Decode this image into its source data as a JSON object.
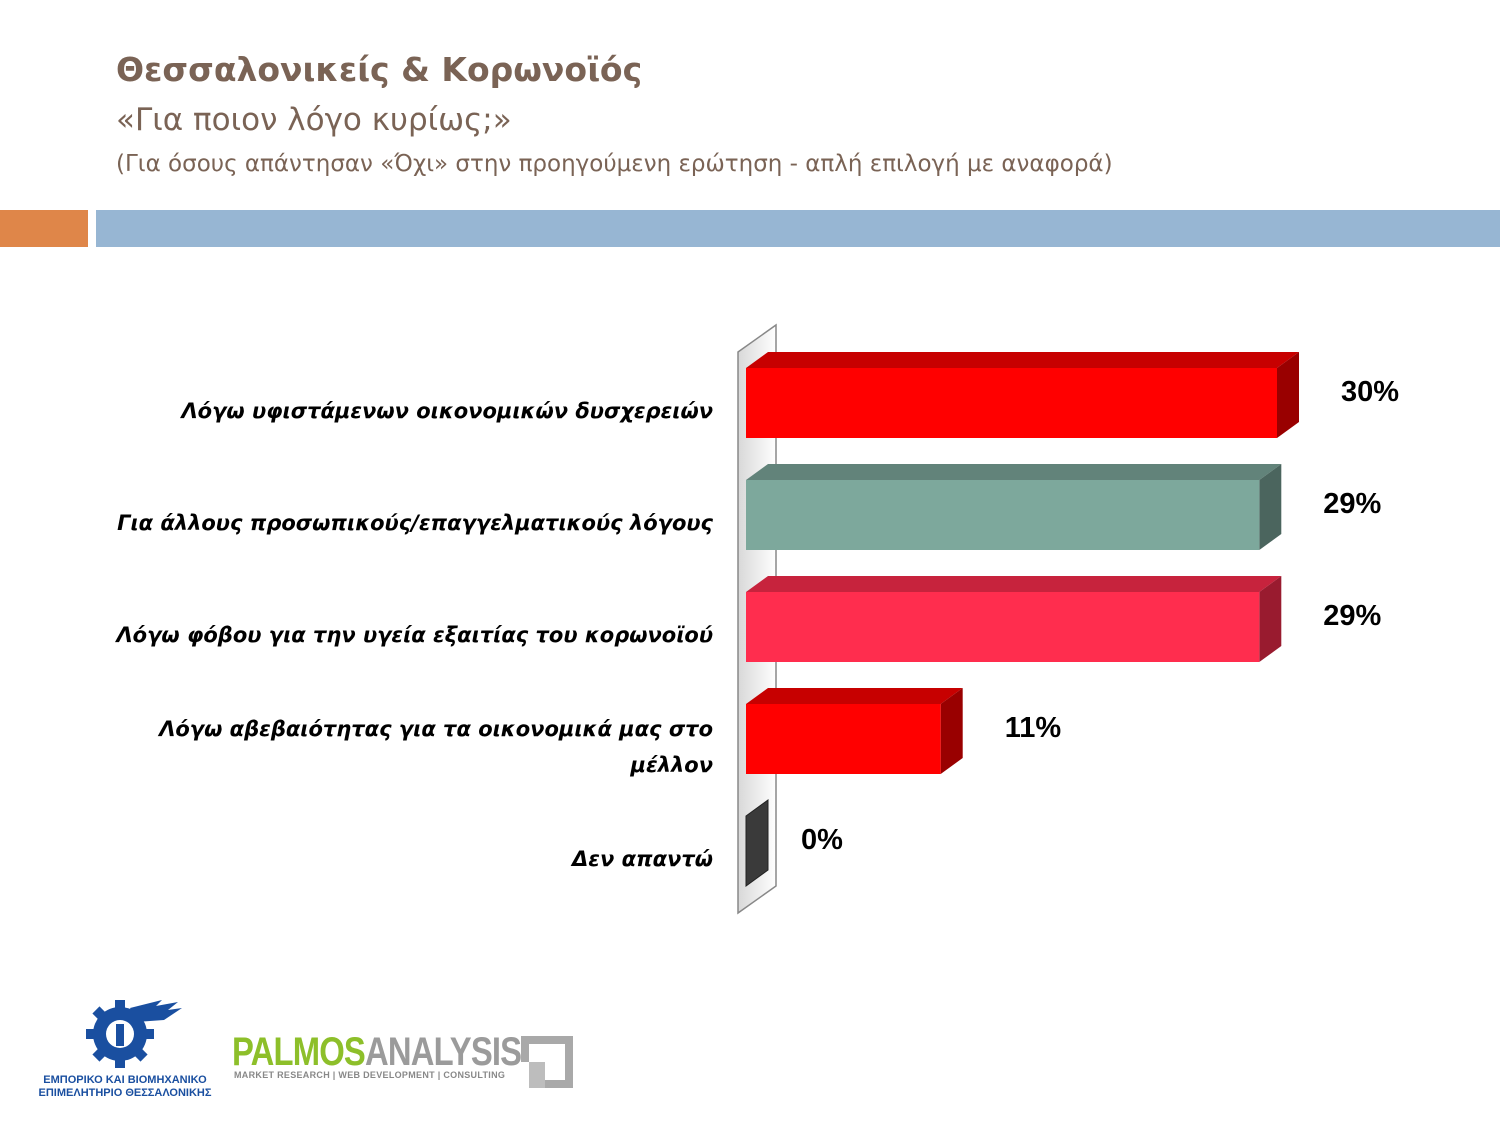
{
  "header": {
    "title": "Θεσσαλονικείς & Κορωνοϊός",
    "subtitle": "«Για ποιον λόγο κυρίως;»",
    "note": "(Για όσους απάντησαν «Όχι» στην προηγούμενη ερώτηση -  απλή επιλογή με αναφορά)"
  },
  "chart_data": {
    "type": "bar",
    "orientation": "horizontal",
    "categories": [
      "Λόγω υφιστάμενων οικονομικών δυσχερειών",
      "Για άλλους προσωπικούς/επαγγελματικούς λόγους",
      "Λόγω φόβου για την υγεία εξαιτίας του κορωνοϊού",
      "Λόγω αβεβαιότητας για τα οικονομικά μας στο μέλλον",
      "Δεν απαντώ"
    ],
    "values": [
      30,
      29,
      29,
      11,
      0
    ],
    "value_labels": [
      "30%",
      "29%",
      "29%",
      "11%",
      "0%"
    ],
    "colors": [
      "#ff0000",
      "#7da89c",
      "#ff2d4e",
      "#ff0000",
      "#3a3a3a"
    ],
    "xlim": [
      0,
      30
    ],
    "grid": false,
    "legend": "none"
  },
  "logos": {
    "left_org_line1": "ΕΜΠΟΡΙΚΟ ΚΑΙ ΒΙΟΜΗΧΑΝΙΚΟ",
    "left_org_line2": "ΕΠΙΜΕΛΗΤΗΡΙΟ ΘΕΣΣΑΛΟΝΙΚΗΣ",
    "right_brand_a": "PALMOS",
    "right_brand_b": "ANALYSIS",
    "right_tagline": "MARKET RESEARCH | WEB DEVELOPMENT | CONSULTING"
  }
}
